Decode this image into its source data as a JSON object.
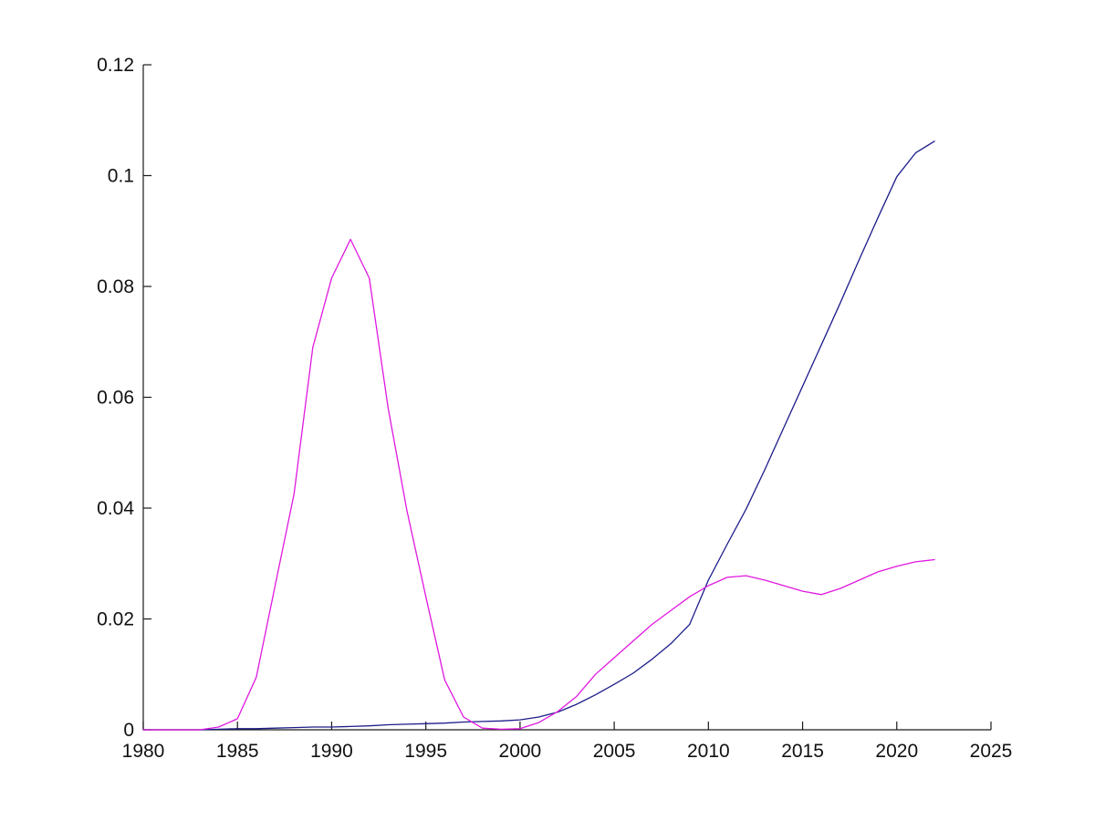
{
  "figure": {
    "background": "#ffffff",
    "axis_color": "#1a1a1a",
    "tick_label_color": "#111111"
  },
  "chart_data": {
    "type": "line",
    "title": "",
    "xlabel": "",
    "ylabel": "",
    "grid": false,
    "box": false,
    "legend": null,
    "xlim": [
      1980,
      2025
    ],
    "ylim": [
      0,
      0.12
    ],
    "x_ticks": [
      1980,
      1985,
      1990,
      1995,
      2000,
      2005,
      2010,
      2015,
      2020,
      2025
    ],
    "x_tick_labels": [
      "1980",
      "1985",
      "1990",
      "1995",
      "2000",
      "2005",
      "2010",
      "2015",
      "2020",
      "2025"
    ],
    "y_ticks": [
      0,
      0.02,
      0.04,
      0.06,
      0.08,
      0.1,
      0.12
    ],
    "y_tick_labels": [
      "0",
      "0.02",
      "0.04",
      "0.06",
      "0.08",
      "0.1",
      "0.12"
    ],
    "x": [
      1980,
      1981,
      1982,
      1983,
      1984,
      1985,
      1986,
      1987,
      1988,
      1989,
      1990,
      1991,
      1992,
      1993,
      1994,
      1995,
      1996,
      1997,
      1998,
      1999,
      2000,
      2001,
      2002,
      2003,
      2004,
      2005,
      2006,
      2007,
      2008,
      2009,
      2010,
      2011,
      2012,
      2013,
      2014,
      2015,
      2016,
      2017,
      2018,
      2019,
      2020,
      2021,
      2022
    ],
    "series": [
      {
        "name": "navy-line",
        "color": "#1c1c8a",
        "values": [
          0,
          0,
          0,
          0,
          0.0001,
          0.0002,
          0.0002,
          0.0003,
          0.0004,
          0.0005,
          0.0005,
          0.0006,
          0.0007,
          0.0009,
          0.001,
          0.0011,
          0.0012,
          0.0014,
          0.0015,
          0.0016,
          0.0018,
          0.0023,
          0.0032,
          0.0046,
          0.0063,
          0.0082,
          0.0102,
          0.0127,
          0.0155,
          0.019,
          0.027,
          0.0335,
          0.0398,
          0.047,
          0.0545,
          0.062,
          0.0695,
          0.077,
          0.0848,
          0.0924,
          0.0998,
          0.1041,
          0.1062
        ]
      },
      {
        "name": "magenta-line",
        "color": "#e018e0",
        "values": [
          0,
          0,
          0,
          0,
          0.0005,
          0.002,
          0.0095,
          0.026,
          0.0425,
          0.069,
          0.0815,
          0.0885,
          0.0815,
          0.058,
          0.0395,
          0.024,
          0.009,
          0.0023,
          0.0003,
          0.0001,
          0.0002,
          0.0013,
          0.0033,
          0.006,
          0.01,
          0.013,
          0.016,
          0.019,
          0.0215,
          0.024,
          0.026,
          0.0275,
          0.0278,
          0.027,
          0.026,
          0.025,
          0.0244,
          0.0255,
          0.027,
          0.0285,
          0.0295,
          0.0303,
          0.0307
        ]
      }
    ]
  }
}
